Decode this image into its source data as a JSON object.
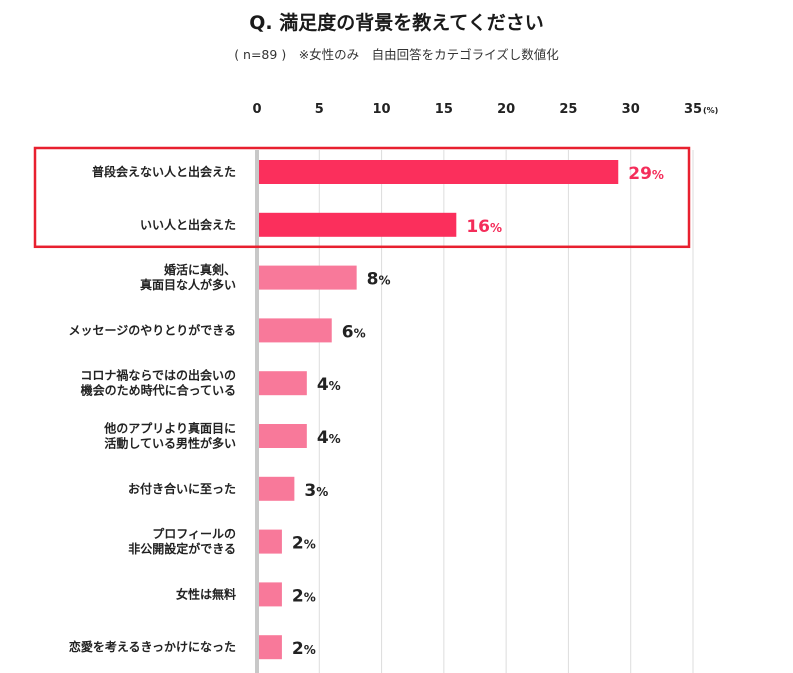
{
  "title": "Q. 満足度の背景を教えてください",
  "subtitle": "( n=89 )　※女性のみ　自由回答をカテゴライズし数値化",
  "chart_data": {
    "type": "bar",
    "orientation": "horizontal",
    "x_ticks": [
      "0",
      "5",
      "10",
      "15",
      "20",
      "25",
      "30",
      "35"
    ],
    "x_unit": "(%)",
    "xlim": [
      0,
      35
    ],
    "grid": true,
    "highlight": {
      "indices": [
        0,
        1
      ],
      "color": "#e8202f"
    },
    "categories": [
      [
        "普段会えない人と出会えた"
      ],
      [
        "いい人と出会えた"
      ],
      [
        "婚活に真剣、",
        "真面目な人が多い"
      ],
      [
        "メッセージのやりとりができる"
      ],
      [
        "コロナ禍ならではの出会いの",
        "機会のため時代に合っている"
      ],
      [
        "他のアプリより真面目に",
        "活動している男性が多い"
      ],
      [
        "お付き合いに至った"
      ],
      [
        "プロフィールの",
        "非公開設定ができる"
      ],
      [
        "女性は無料"
      ],
      [
        "恋愛を考えるきっかけになった"
      ]
    ],
    "values": [
      29,
      16,
      8,
      6,
      4,
      4,
      3,
      2,
      2,
      2
    ],
    "value_labels": [
      "29",
      "16",
      "8",
      "6",
      "4",
      "4",
      "3",
      "2",
      "2",
      "2"
    ],
    "value_suffix": "%",
    "colors": {
      "bar_highlight": "#fb2f5c",
      "bar_normal": "#f8799a",
      "label_highlight": "#f42d5a",
      "label_normal": "#222222",
      "grid": "#dddddd",
      "baseline": "#c8c8c8"
    }
  }
}
